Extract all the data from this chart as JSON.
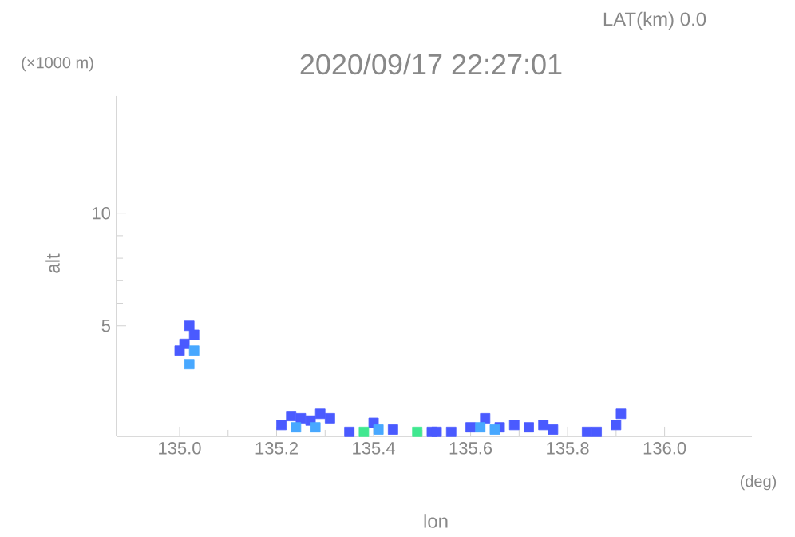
{
  "chart_data": {
    "type": "scatter",
    "title": "2020/09/17 22:27:01",
    "subtitle": "LAT(km) 0.0",
    "xlabel": "lon",
    "ylabel": "alt",
    "annotations": [
      "(×1000 m)",
      "(deg)"
    ],
    "xlim": [
      134.87,
      136.18
    ],
    "ylim": [
      0.1,
      15.2
    ],
    "xticks": [
      {
        "value": 135,
        "label": "135.0"
      },
      135.2,
      135.4,
      135.6,
      135.8,
      {
        "value": 136,
        "label": "136.0"
      }
    ],
    "yticks": [
      5,
      10
    ],
    "marker": "square",
    "series": [
      {
        "color": "#4a5aff",
        "x": [
          135.01,
          135.02,
          135.03,
          135.0,
          135.21,
          135.23,
          135.25,
          135.27,
          135.29,
          135.31,
          135.35,
          135.4,
          135.44,
          135.52,
          135.53,
          135.56,
          135.6,
          135.63,
          135.66,
          135.69,
          135.72,
          135.75,
          135.77,
          135.84,
          135.86,
          135.9,
          135.91
        ],
        "values": [
          4.2,
          5.0,
          4.6,
          3.9,
          0.6,
          1.0,
          0.9,
          0.8,
          1.1,
          0.9,
          0.3,
          0.7,
          0.4,
          0.3,
          0.3,
          0.3,
          0.5,
          0.9,
          0.5,
          0.6,
          0.5,
          0.6,
          0.4,
          0.3,
          0.3,
          0.6,
          1.1
        ]
      },
      {
        "color": "#48a8ff",
        "x": [
          135.02,
          135.03,
          135.24,
          135.28,
          135.41,
          135.62,
          135.65
        ],
        "values": [
          3.3,
          3.9,
          0.5,
          0.5,
          0.4,
          0.5,
          0.4
        ]
      },
      {
        "color": "#40e890",
        "x": [
          135.49,
          135.38
        ],
        "values": [
          0.3,
          0.3
        ]
      }
    ]
  }
}
